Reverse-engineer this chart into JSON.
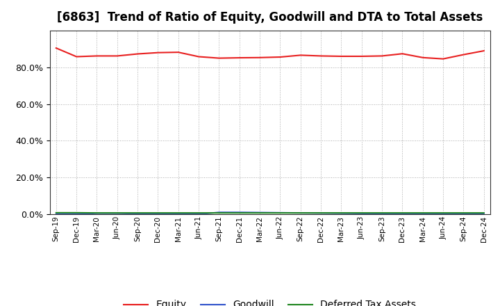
{
  "title": "[6863]  Trend of Ratio of Equity, Goodwill and DTA to Total Assets",
  "x_labels": [
    "Sep-19",
    "Dec-19",
    "Mar-20",
    "Jun-20",
    "Sep-20",
    "Dec-20",
    "Mar-21",
    "Jun-21",
    "Sep-21",
    "Dec-21",
    "Mar-22",
    "Jun-22",
    "Sep-22",
    "Dec-22",
    "Mar-23",
    "Jun-23",
    "Sep-23",
    "Dec-23",
    "Mar-24",
    "Jun-24",
    "Sep-24",
    "Dec-24"
  ],
  "equity": [
    0.905,
    0.858,
    0.862,
    0.862,
    0.873,
    0.88,
    0.882,
    0.858,
    0.85,
    0.852,
    0.853,
    0.856,
    0.866,
    0.862,
    0.86,
    0.86,
    0.862,
    0.874,
    0.853,
    0.846,
    0.869,
    0.89
  ],
  "goodwill": [
    0.0,
    0.0,
    0.005,
    0.005,
    0.003,
    0.0,
    0.0,
    0.0,
    0.01,
    0.01,
    0.009,
    0.008,
    0.007,
    0.006,
    0.005,
    0.004,
    0.003,
    0.003,
    0.002,
    0.002,
    0.002,
    0.002
  ],
  "dta": [
    0.008,
    0.008,
    0.007,
    0.007,
    0.007,
    0.007,
    0.007,
    0.007,
    0.007,
    0.007,
    0.007,
    0.007,
    0.007,
    0.007,
    0.007,
    0.007,
    0.007,
    0.007,
    0.007,
    0.007,
    0.007,
    0.007
  ],
  "equity_color": "#e82020",
  "goodwill_color": "#3355cc",
  "dta_color": "#228822",
  "ylim": [
    0.0,
    1.0
  ],
  "yticks": [
    0.0,
    0.2,
    0.4,
    0.6,
    0.8
  ],
  "background_color": "#ffffff",
  "plot_bg_color": "#ffffff",
  "grid_color": "#aaaaaa",
  "title_fontsize": 12,
  "legend_labels": [
    "Equity",
    "Goodwill",
    "Deferred Tax Assets"
  ]
}
